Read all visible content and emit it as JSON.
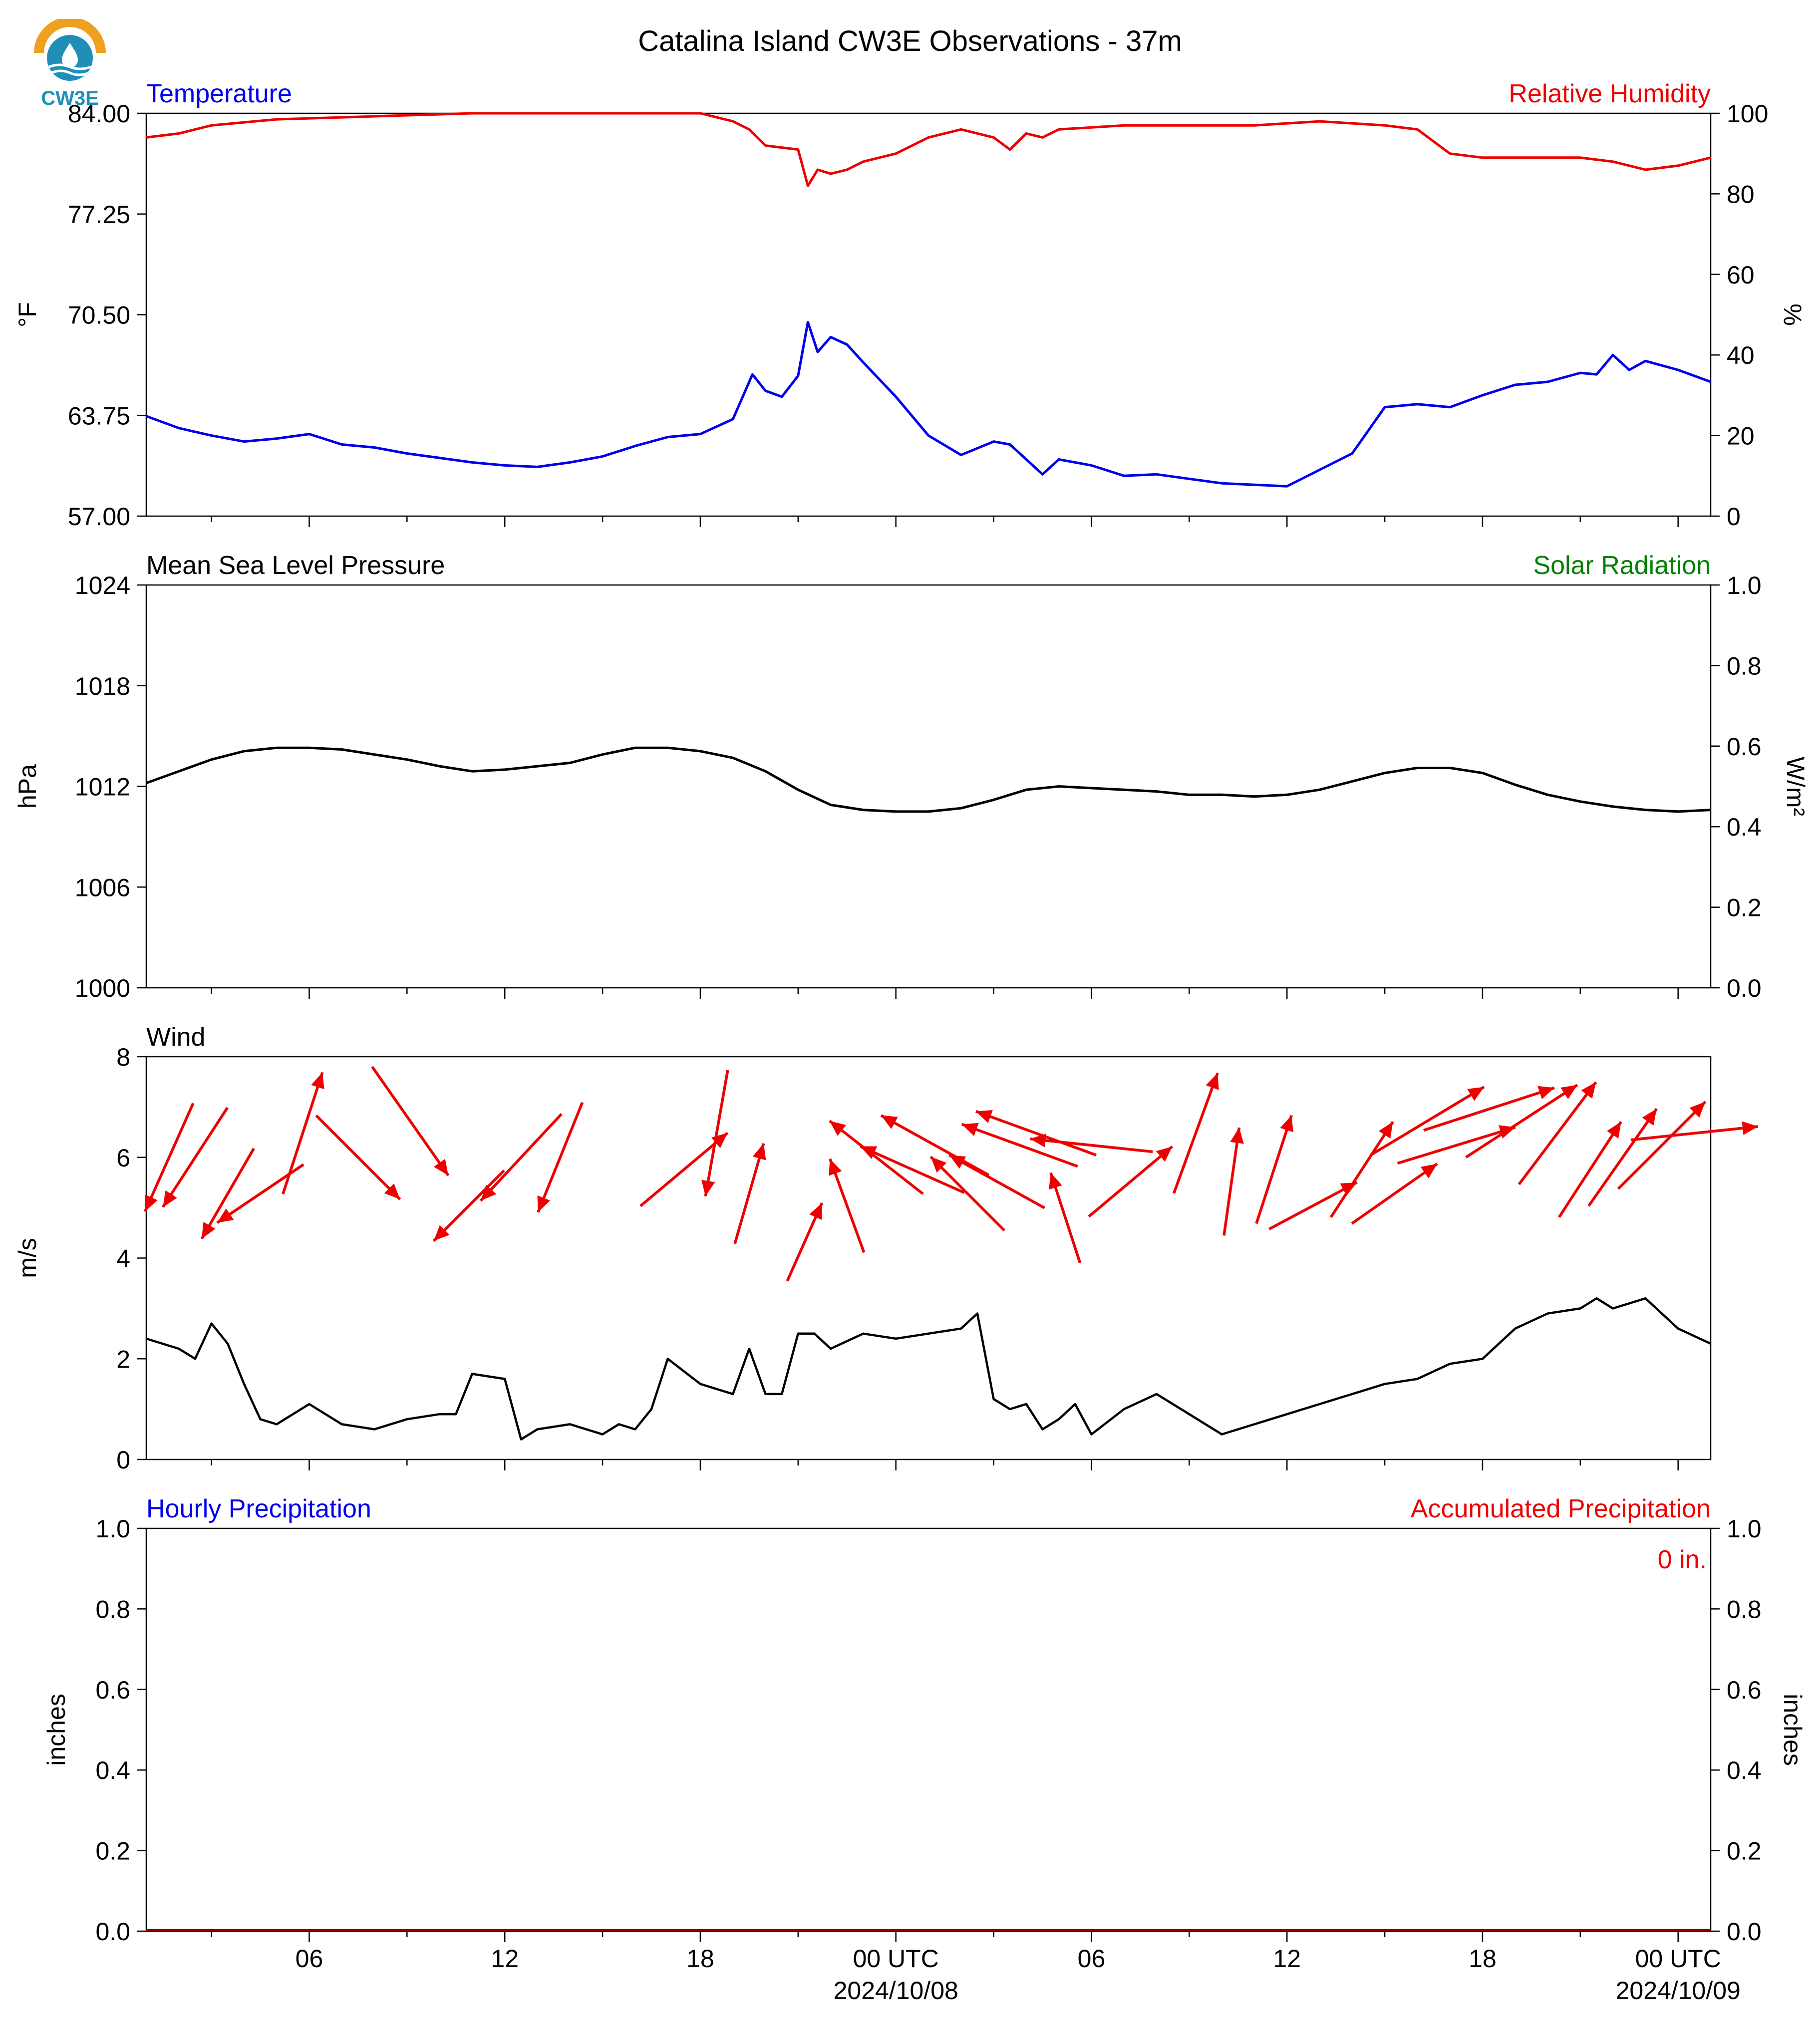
{
  "title": "Catalina Island CW3E Observations - 37m",
  "logo": {
    "text": "CW3E",
    "icon": "cw3e-droplet-logo-icon"
  },
  "colors": {
    "temperature": "#0000ee",
    "humidity": "#ee0000",
    "pressure": "#000000",
    "solar": "#008000",
    "wind_arrows": "#ee0000",
    "wind_speed": "#000000",
    "hourly_precip": "#0000ee",
    "accum_precip": "#ee0000"
  },
  "time_axis": {
    "tick_labels": [
      "06",
      "12",
      "18",
      "00 UTC",
      "06",
      "12",
      "18",
      "00 UTC"
    ],
    "date_labels": [
      "2024/10/08",
      "2024/10/09"
    ]
  },
  "panels": {
    "temp": {
      "left_label": "Temperature",
      "right_label": "Relative Humidity",
      "left_unit": "°F",
      "right_unit": "%",
      "left_ticks": [
        "84.00",
        "77.25",
        "70.50",
        "63.75",
        "57.00"
      ],
      "right_ticks": [
        "100",
        "80",
        "60",
        "40",
        "20",
        "0"
      ]
    },
    "pressure": {
      "left_label": "Mean Sea Level Pressure",
      "right_label": "Solar Radiation",
      "left_unit": "hPa",
      "right_unit": "W/m²",
      "left_ticks": [
        "1024",
        "1018",
        "1012",
        "1006",
        "1000"
      ],
      "right_ticks": [
        "1.0",
        "0.8",
        "0.6",
        "0.4",
        "0.2",
        "0.0"
      ]
    },
    "wind": {
      "left_label": "Wind",
      "left_unit": "m/s",
      "left_ticks": [
        "8",
        "6",
        "4",
        "2",
        "0"
      ]
    },
    "precip": {
      "left_label": "Hourly Precipitation",
      "right_label": "Accumulated Precipitation",
      "left_unit": "inches",
      "right_unit": "inches",
      "left_ticks": [
        "1.0",
        "0.8",
        "0.6",
        "0.4",
        "0.2",
        "0.0"
      ],
      "right_ticks": [
        "1.0",
        "0.8",
        "0.6",
        "0.4",
        "0.2",
        "0.0"
      ],
      "accum_text": "0 in."
    }
  },
  "chart_data": [
    {
      "type": "line",
      "panel": "temp",
      "x_unit": "hours since 2024/10/07 01 UTC",
      "xlim": [
        0,
        48
      ],
      "series": [
        {
          "name": "Temperature",
          "axis": "left",
          "ylim": [
            57,
            84
          ],
          "x": [
            0,
            1,
            2,
            3,
            4,
            5,
            6,
            7,
            8,
            9,
            10,
            11,
            12,
            13,
            14,
            15,
            16,
            17,
            18,
            18.6,
            19,
            19.5,
            20,
            20.3,
            20.6,
            21,
            21.5,
            22,
            23,
            24,
            25,
            26,
            26.5,
            27,
            27.5,
            28,
            29,
            30,
            31,
            32,
            33,
            34,
            35,
            36,
            37,
            38,
            39,
            40,
            41,
            42,
            43,
            44,
            44.5,
            45,
            45.5,
            46,
            47,
            48
          ],
          "y": [
            63.7,
            62.9,
            62.4,
            62.0,
            62.2,
            62.5,
            61.8,
            61.6,
            61.2,
            60.9,
            60.6,
            60.4,
            60.3,
            60.6,
            61.0,
            61.7,
            62.3,
            62.5,
            63.5,
            66.5,
            65.4,
            65.0,
            66.4,
            70.0,
            68.0,
            69.0,
            68.5,
            67.3,
            65.0,
            62.4,
            61.1,
            62.0,
            61.8,
            60.8,
            59.8,
            60.8,
            60.4,
            59.7,
            59.8,
            59.5,
            59.2,
            59.1,
            59.0,
            60.1,
            61.2,
            64.3,
            64.5,
            64.3,
            65.1,
            65.8,
            66.0,
            66.6,
            66.5,
            67.8,
            66.8,
            67.4,
            66.8,
            66.0
          ]
        },
        {
          "name": "Relative Humidity",
          "axis": "right",
          "ylim": [
            0,
            100
          ],
          "x": [
            0,
            1,
            2,
            4,
            6,
            8,
            10,
            12,
            14,
            16,
            17,
            18,
            18.5,
            19,
            20,
            20.3,
            20.6,
            21,
            21.5,
            22,
            23,
            24,
            25,
            26,
            26.5,
            27,
            27.5,
            28,
            30,
            32,
            34,
            36,
            38,
            39,
            40,
            41,
            42,
            43,
            44,
            45,
            46,
            47,
            48
          ],
          "y": [
            94,
            95,
            97,
            98.5,
            99,
            99.5,
            100,
            100,
            100,
            100,
            100,
            98,
            96,
            92,
            91,
            82,
            86,
            85,
            86,
            88,
            90,
            94,
            96,
            94,
            91,
            95,
            94,
            96,
            97,
            97,
            97,
            98,
            97,
            96,
            90,
            89,
            89,
            89,
            89,
            88,
            86,
            87,
            89
          ]
        }
      ]
    },
    {
      "type": "line",
      "panel": "pressure",
      "x_unit": "hours since 2024/10/07 01 UTC",
      "xlim": [
        0,
        48
      ],
      "series": [
        {
          "name": "Mean Sea Level Pressure",
          "axis": "left",
          "ylim": [
            1000,
            1024
          ],
          "x": [
            0,
            1,
            2,
            3,
            4,
            5,
            6,
            7,
            8,
            9,
            10,
            11,
            12,
            13,
            14,
            15,
            16,
            17,
            18,
            19,
            20,
            21,
            22,
            23,
            24,
            25,
            26,
            27,
            28,
            29,
            30,
            31,
            32,
            33,
            34,
            35,
            36,
            37,
            38,
            39,
            40,
            41,
            42,
            43,
            44,
            45,
            46,
            47,
            48
          ],
          "y": [
            1012.2,
            1012.9,
            1013.6,
            1014.1,
            1014.3,
            1014.3,
            1014.2,
            1013.9,
            1013.6,
            1013.2,
            1012.9,
            1013.0,
            1013.2,
            1013.4,
            1013.9,
            1014.3,
            1014.3,
            1014.1,
            1013.7,
            1012.9,
            1011.8,
            1010.9,
            1010.6,
            1010.5,
            1010.5,
            1010.7,
            1011.2,
            1011.8,
            1012.0,
            1011.9,
            1011.8,
            1011.7,
            1011.5,
            1011.5,
            1011.4,
            1011.5,
            1011.8,
            1012.3,
            1012.8,
            1013.1,
            1013.1,
            1012.8,
            1012.1,
            1011.5,
            1011.1,
            1010.8,
            1010.6,
            1010.5,
            1010.6
          ]
        },
        {
          "name": "Solar Radiation",
          "axis": "right",
          "ylim": [
            0,
            1
          ],
          "x": [],
          "y": []
        }
      ]
    },
    {
      "type": "line",
      "panel": "wind",
      "x_unit": "hours since 2024/10/07 01 UTC",
      "xlim": [
        0,
        48
      ],
      "ylim": [
        0,
        8
      ],
      "series": [
        {
          "name": "Wind",
          "x": [
            0,
            1,
            1.5,
            2,
            2.5,
            3,
            3.5,
            4,
            5,
            6,
            7,
            8,
            9,
            9.5,
            10,
            11,
            11.5,
            12,
            13,
            14,
            14.5,
            15,
            15.5,
            16,
            17,
            18,
            18.5,
            19,
            19.5,
            20,
            20.5,
            21,
            22,
            23,
            24,
            25,
            25.5,
            26,
            26.5,
            27,
            27.5,
            28,
            28.5,
            29,
            30,
            31,
            32,
            33,
            34,
            35,
            36,
            37,
            38,
            39,
            40,
            41,
            42,
            43,
            44,
            44.5,
            45,
            46,
            47,
            48
          ],
          "y": [
            2.4,
            2.2,
            2.0,
            2.7,
            2.3,
            1.5,
            0.8,
            0.7,
            1.1,
            0.7,
            0.6,
            0.8,
            0.9,
            0.9,
            1.7,
            1.6,
            0.4,
            0.6,
            0.7,
            0.5,
            0.7,
            0.6,
            1.0,
            2.0,
            1.5,
            1.3,
            2.2,
            1.3,
            1.3,
            2.5,
            2.5,
            2.2,
            2.5,
            2.4,
            2.5,
            2.6,
            2.9,
            1.2,
            1.0,
            1.1,
            0.6,
            0.8,
            1.1,
            0.5,
            1.0,
            1.3,
            0.9,
            0.5,
            0.7,
            0.9,
            1.1,
            1.3,
            1.5,
            1.6,
            1.9,
            2.0,
            2.6,
            2.9,
            3.0,
            3.2,
            3.0,
            3.2,
            2.6,
            2.3
          ]
        }
      ],
      "arrows": {
        "x": [
          0.7,
          1.5,
          2.5,
          3.5,
          4.8,
          6.5,
          8.1,
          9.9,
          11.5,
          12.7,
          16.5,
          17.5,
          18.5,
          20.2,
          21.5,
          22.4,
          23.5,
          24.2,
          25.2,
          26.1,
          26.8,
          27.3,
          28.2,
          29.0,
          30.2,
          32.2,
          33.3,
          34.6,
          35.8,
          37.3,
          38.3,
          39.3,
          40.2,
          41.2,
          42.2,
          43.3,
          44.3,
          45.3,
          46.5,
          47.5
        ],
        "dir_deg": [
          24,
          33,
          30,
          56,
          198,
          315,
          325,
          45,
          43,
          22,
          230,
          10,
          196,
          204,
          160,
          128,
          114,
          119,
          135,
          119,
          110,
          110,
          162,
          96,
          230,
          200,
          188,
          198,
          242,
          213,
          235,
          239,
          253,
          252,
          237,
          217,
          213,
          215,
          225,
          264
        ],
        "speed_ms": [
          2.5,
          2.5,
          2.2,
          2.2,
          2.7,
          2.5,
          2.8,
          2.1,
          2.5,
          2.5,
          2.4,
          2.7,
          2.2,
          1.8,
          2.1,
          2.5,
          2.4,
          2.6,
          2.2,
          2.3,
          2.6,
          2.7,
          2.0,
          2.6,
          2.3,
          2.7,
          2.3,
          2.4,
          2.1,
          2.4,
          2.2,
          2.8,
          2.6,
          2.9,
          2.8,
          2.7,
          2.4,
          2.5,
          2.6,
          2.7
        ]
      }
    },
    {
      "type": "bar",
      "panel": "precip",
      "x_unit": "hours since 2024/10/07 01 UTC",
      "xlim": [
        0,
        48
      ],
      "series": [
        {
          "name": "Hourly Precipitation",
          "axis": "left",
          "ylim": [
            0,
            1
          ],
          "x": [
            0,
            48
          ],
          "values": [
            0,
            0
          ]
        },
        {
          "name": "Accumulated Precipitation",
          "axis": "right",
          "ylim": [
            0,
            1
          ],
          "x": [
            0,
            48
          ],
          "values": [
            0,
            0
          ]
        }
      ]
    }
  ]
}
